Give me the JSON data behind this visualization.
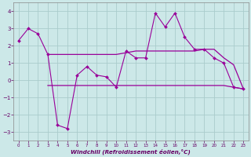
{
  "xlabel": "Windchill (Refroidissement éolien,°C)",
  "bg_color": "#cce8e8",
  "grid_color": "#aacccc",
  "line_color": "#990099",
  "series1_x": [
    0,
    1,
    2,
    3,
    4,
    5,
    6,
    7,
    8,
    9,
    10,
    11,
    12,
    13,
    14,
    15,
    16,
    17,
    18,
    19,
    20,
    21,
    22,
    23
  ],
  "series1_y": [
    2.3,
    3.0,
    2.7,
    1.5,
    -2.6,
    -2.8,
    0.3,
    0.8,
    0.3,
    0.2,
    -0.4,
    1.7,
    1.3,
    1.3,
    3.9,
    3.1,
    3.9,
    2.5,
    1.8,
    1.8,
    1.3,
    1.0,
    -0.4,
    -0.5
  ],
  "series2_x": [
    3,
    10,
    11,
    12,
    13,
    14,
    15,
    16,
    17,
    18,
    19,
    20,
    21,
    22,
    23
  ],
  "series2_y": [
    1.5,
    1.5,
    1.6,
    1.7,
    1.7,
    1.7,
    1.7,
    1.7,
    1.7,
    1.7,
    1.8,
    1.8,
    1.3,
    0.9,
    -0.5
  ],
  "series3_x": [
    3,
    10,
    11,
    12,
    13,
    14,
    15,
    16,
    17,
    18,
    19,
    20,
    21,
    22,
    23
  ],
  "series3_y": [
    -0.3,
    -0.3,
    -0.3,
    -0.3,
    -0.3,
    -0.3,
    -0.3,
    -0.3,
    -0.3,
    -0.3,
    -0.3,
    -0.3,
    -0.3,
    -0.4,
    -0.5
  ],
  "ylim": [
    -3.5,
    4.5
  ],
  "yticks": [
    -3,
    -2,
    -1,
    0,
    1,
    2,
    3,
    4
  ],
  "xticks": [
    0,
    1,
    2,
    3,
    4,
    5,
    6,
    7,
    8,
    9,
    10,
    11,
    12,
    13,
    14,
    15,
    16,
    17,
    18,
    19,
    20,
    21,
    22,
    23
  ]
}
